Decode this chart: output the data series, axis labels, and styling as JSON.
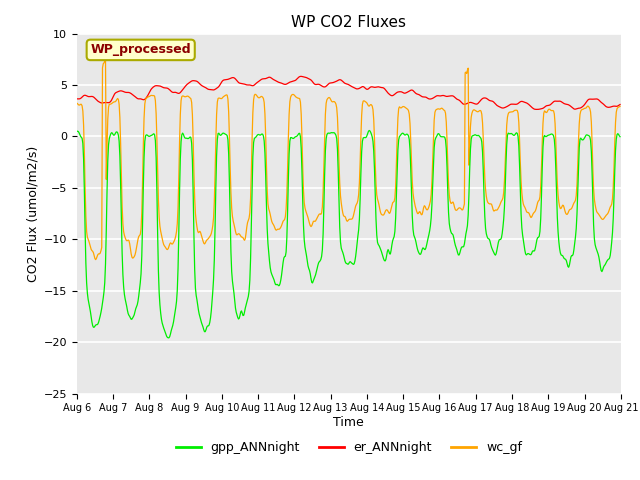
{
  "title": "WP CO2 Fluxes",
  "xlabel": "Time",
  "ylabel_display": "CO2 Flux (umol/m2/s)",
  "ylim": [
    -25,
    10
  ],
  "yticks": [
    -25,
    -20,
    -15,
    -10,
    -5,
    0,
    5,
    10
  ],
  "xtick_labels": [
    "Aug 6",
    "Aug 7",
    "Aug 8",
    "Aug 9",
    "Aug 10",
    "Aug 11",
    "Aug 12",
    "Aug 13",
    "Aug 14",
    "Aug 15",
    "Aug 16",
    "Aug 17",
    "Aug 18",
    "Aug 19",
    "Aug 20",
    "Aug 21"
  ],
  "legend_items": [
    "gpp_ANNnight",
    "er_ANNnight",
    "wc_gf"
  ],
  "legend_colors": [
    "#00ee00",
    "#ff0000",
    "#ffa500"
  ],
  "watermark_text": "WP_processed",
  "watermark_color": "#8b0000",
  "watermark_bg": "#ffffcc",
  "fig_bg": "#ffffff",
  "plot_bg": "#e8e8e8",
  "grid_color": "#d0d0d0",
  "line_colors": {
    "gpp": "#00ee00",
    "er": "#ff0000",
    "wc": "#ffa500"
  },
  "n_days": 15,
  "pts_per_day": 48
}
